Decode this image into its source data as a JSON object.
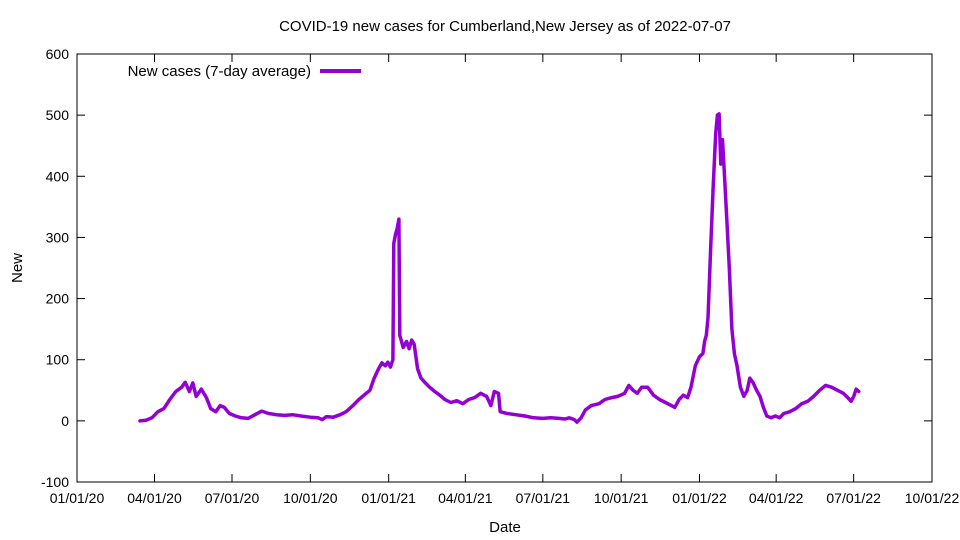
{
  "chart_data": {
    "type": "line",
    "title": "COVID-19 new cases for Cumberland,New Jersey as of 2022-07-07",
    "xlabel": "Date",
    "ylabel": "New",
    "xlim": [
      "2020-01-01",
      "2022-10-01"
    ],
    "ylim": [
      -100,
      600
    ],
    "grid": false,
    "legend_position": "top-left",
    "x_tick_labels": [
      "01/01/20",
      "04/01/20",
      "07/01/20",
      "10/01/20",
      "01/01/21",
      "04/01/21",
      "07/01/21",
      "10/01/21",
      "01/01/22",
      "04/01/22",
      "07/01/22",
      "10/01/22"
    ],
    "x_tick_dates": [
      "2020-01-01",
      "2020-04-01",
      "2020-07-01",
      "2020-10-01",
      "2021-01-01",
      "2021-04-01",
      "2021-07-01",
      "2021-10-01",
      "2022-01-01",
      "2022-04-01",
      "2022-07-01",
      "2022-10-01"
    ],
    "y_ticks": [
      -100,
      0,
      100,
      200,
      300,
      400,
      500,
      600
    ],
    "series": [
      {
        "name": "New cases (7-day average)",
        "color": "#9400D3",
        "points": [
          [
            "2020-03-15",
            0
          ],
          [
            "2020-03-22",
            1
          ],
          [
            "2020-03-29",
            5
          ],
          [
            "2020-04-05",
            15
          ],
          [
            "2020-04-12",
            20
          ],
          [
            "2020-04-19",
            35
          ],
          [
            "2020-04-26",
            48
          ],
          [
            "2020-05-03",
            55
          ],
          [
            "2020-05-07",
            63
          ],
          [
            "2020-05-12",
            48
          ],
          [
            "2020-05-16",
            62
          ],
          [
            "2020-05-20",
            40
          ],
          [
            "2020-05-26",
            52
          ],
          [
            "2020-06-01",
            38
          ],
          [
            "2020-06-06",
            20
          ],
          [
            "2020-06-12",
            15
          ],
          [
            "2020-06-17",
            25
          ],
          [
            "2020-06-22",
            22
          ],
          [
            "2020-06-28",
            12
          ],
          [
            "2020-07-05",
            8
          ],
          [
            "2020-07-12",
            5
          ],
          [
            "2020-07-20",
            4
          ],
          [
            "2020-07-28",
            10
          ],
          [
            "2020-08-05",
            16
          ],
          [
            "2020-08-13",
            12
          ],
          [
            "2020-08-22",
            10
          ],
          [
            "2020-09-01",
            9
          ],
          [
            "2020-09-10",
            10
          ],
          [
            "2020-09-20",
            8
          ],
          [
            "2020-10-01",
            6
          ],
          [
            "2020-10-10",
            5
          ],
          [
            "2020-10-15",
            2
          ],
          [
            "2020-10-20",
            7
          ],
          [
            "2020-10-28",
            6
          ],
          [
            "2020-11-05",
            10
          ],
          [
            "2020-11-12",
            15
          ],
          [
            "2020-11-20",
            25
          ],
          [
            "2020-11-27",
            35
          ],
          [
            "2020-12-03",
            42
          ],
          [
            "2020-12-10",
            50
          ],
          [
            "2020-12-15",
            70
          ],
          [
            "2020-12-20",
            85
          ],
          [
            "2020-12-24",
            95
          ],
          [
            "2020-12-28",
            90
          ],
          [
            "2020-12-31",
            96
          ],
          [
            "2021-01-03",
            88
          ],
          [
            "2021-01-06",
            100
          ],
          [
            "2021-01-07",
            290
          ],
          [
            "2021-01-09",
            305
          ],
          [
            "2021-01-11",
            315
          ],
          [
            "2021-01-13",
            330
          ],
          [
            "2021-01-14",
            140
          ],
          [
            "2021-01-18",
            120
          ],
          [
            "2021-01-22",
            130
          ],
          [
            "2021-01-25",
            118
          ],
          [
            "2021-01-28",
            132
          ],
          [
            "2021-01-31",
            125
          ],
          [
            "2021-02-04",
            85
          ],
          [
            "2021-02-08",
            70
          ],
          [
            "2021-02-13",
            62
          ],
          [
            "2021-02-18",
            55
          ],
          [
            "2021-02-24",
            48
          ],
          [
            "2021-03-02",
            42
          ],
          [
            "2021-03-08",
            35
          ],
          [
            "2021-03-15",
            30
          ],
          [
            "2021-03-22",
            33
          ],
          [
            "2021-03-29",
            28
          ],
          [
            "2021-04-05",
            35
          ],
          [
            "2021-04-12",
            38
          ],
          [
            "2021-04-19",
            45
          ],
          [
            "2021-04-26",
            40
          ],
          [
            "2021-05-01",
            25
          ],
          [
            "2021-05-05",
            48
          ],
          [
            "2021-05-10",
            45
          ],
          [
            "2021-05-12",
            15
          ],
          [
            "2021-05-20",
            12
          ],
          [
            "2021-05-30",
            10
          ],
          [
            "2021-06-10",
            8
          ],
          [
            "2021-06-20",
            5
          ],
          [
            "2021-07-01",
            4
          ],
          [
            "2021-07-10",
            5
          ],
          [
            "2021-07-20",
            4
          ],
          [
            "2021-07-27",
            3
          ],
          [
            "2021-08-01",
            5
          ],
          [
            "2021-08-07",
            2
          ],
          [
            "2021-08-10",
            -2
          ],
          [
            "2021-08-15",
            5
          ],
          [
            "2021-08-20",
            18
          ],
          [
            "2021-08-27",
            25
          ],
          [
            "2021-09-05",
            28
          ],
          [
            "2021-09-12",
            35
          ],
          [
            "2021-09-20",
            38
          ],
          [
            "2021-09-27",
            40
          ],
          [
            "2021-10-05",
            45
          ],
          [
            "2021-10-10",
            58
          ],
          [
            "2021-10-15",
            50
          ],
          [
            "2021-10-20",
            45
          ],
          [
            "2021-10-25",
            55
          ],
          [
            "2021-11-01",
            55
          ],
          [
            "2021-11-08",
            42
          ],
          [
            "2021-11-15",
            35
          ],
          [
            "2021-11-22",
            30
          ],
          [
            "2021-11-29",
            25
          ],
          [
            "2021-12-03",
            22
          ],
          [
            "2021-12-08",
            35
          ],
          [
            "2021-12-13",
            42
          ],
          [
            "2021-12-18",
            38
          ],
          [
            "2021-12-22",
            55
          ],
          [
            "2021-12-27",
            90
          ],
          [
            "2022-01-01",
            105
          ],
          [
            "2022-01-05",
            110
          ],
          [
            "2022-01-07",
            130
          ],
          [
            "2022-01-09",
            140
          ],
          [
            "2022-01-11",
            168
          ],
          [
            "2022-01-14",
            280
          ],
          [
            "2022-01-17",
            380
          ],
          [
            "2022-01-20",
            470
          ],
          [
            "2022-01-22",
            500
          ],
          [
            "2022-01-24",
            502
          ],
          [
            "2022-01-26",
            420
          ],
          [
            "2022-01-28",
            460
          ],
          [
            "2022-01-30",
            410
          ],
          [
            "2022-02-02",
            330
          ],
          [
            "2022-02-05",
            250
          ],
          [
            "2022-02-08",
            150
          ],
          [
            "2022-02-11",
            110
          ],
          [
            "2022-02-14",
            90
          ],
          [
            "2022-02-18",
            55
          ],
          [
            "2022-02-22",
            40
          ],
          [
            "2022-02-26",
            50
          ],
          [
            "2022-03-01",
            70
          ],
          [
            "2022-03-05",
            62
          ],
          [
            "2022-03-09",
            50
          ],
          [
            "2022-03-13",
            40
          ],
          [
            "2022-03-17",
            22
          ],
          [
            "2022-03-21",
            8
          ],
          [
            "2022-03-26",
            5
          ],
          [
            "2022-03-31",
            8
          ],
          [
            "2022-04-05",
            5
          ],
          [
            "2022-04-10",
            12
          ],
          [
            "2022-04-17",
            15
          ],
          [
            "2022-04-24",
            20
          ],
          [
            "2022-05-01",
            28
          ],
          [
            "2022-05-08",
            32
          ],
          [
            "2022-05-15",
            40
          ],
          [
            "2022-05-22",
            50
          ],
          [
            "2022-05-29",
            58
          ],
          [
            "2022-06-05",
            55
          ],
          [
            "2022-06-12",
            50
          ],
          [
            "2022-06-19",
            45
          ],
          [
            "2022-06-24",
            38
          ],
          [
            "2022-06-28",
            32
          ],
          [
            "2022-07-01",
            40
          ],
          [
            "2022-07-04",
            52
          ],
          [
            "2022-07-07",
            48
          ]
        ]
      }
    ]
  }
}
